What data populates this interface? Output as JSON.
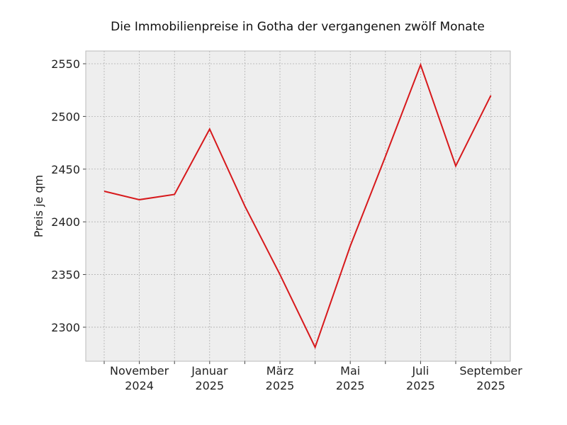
{
  "chart_data": {
    "type": "line",
    "title": "Die Immobilienpreise in Gotha der vergangenen zwölf Monate",
    "y_label": "Preis je qm",
    "categories": [
      null,
      "November\n2024",
      null,
      "Januar\n2025",
      null,
      "März\n2025",
      null,
      "Mai\n2025",
      null,
      "Juli\n2025",
      null,
      "September\n2025"
    ],
    "series": [
      {
        "name": "Preis je qm",
        "color": "#d7191c",
        "values": [
          2429,
          2421,
          2426,
          2488,
          2415,
          2350,
          2281,
          2377,
          2462,
          2549,
          2453,
          2520
        ]
      }
    ],
    "ylim": [
      2267.7,
      2562.1
    ],
    "yticks": [
      2300,
      2350,
      2400,
      2450,
      2500,
      2550
    ],
    "grid": true
  }
}
